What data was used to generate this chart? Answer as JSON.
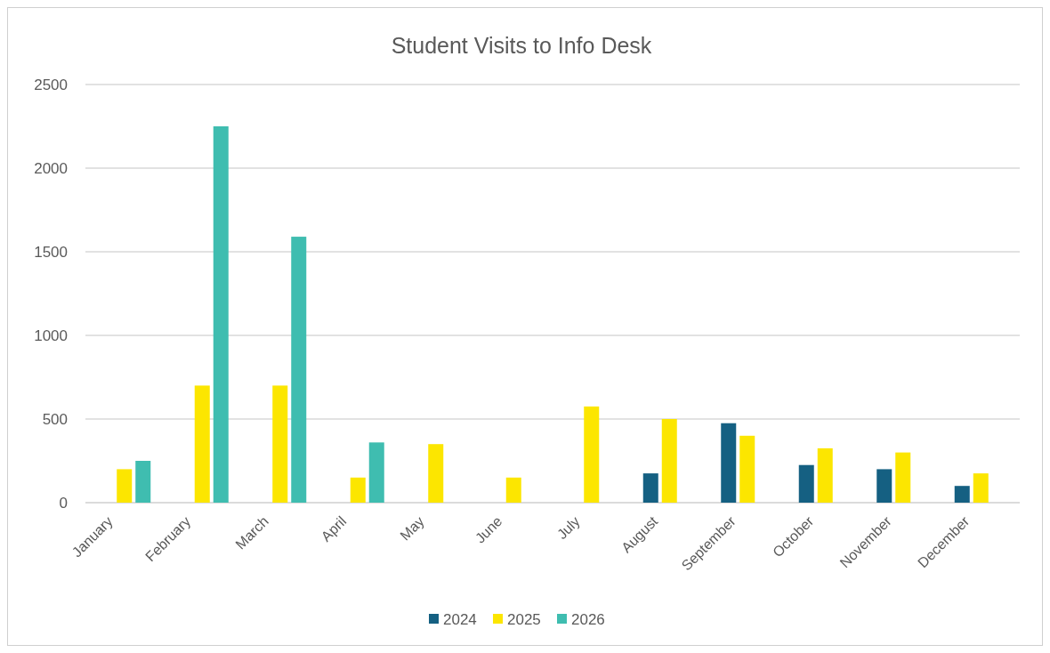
{
  "chart_data": {
    "type": "bar",
    "title": "Student Visits to Info Desk",
    "categories": [
      "January",
      "February",
      "March",
      "April",
      "May",
      "June",
      "July",
      "August",
      "September",
      "October",
      "November",
      "December"
    ],
    "series": [
      {
        "name": "2024",
        "color": "#156082",
        "values": [
          null,
          null,
          null,
          null,
          null,
          null,
          null,
          175,
          475,
          225,
          200,
          100
        ]
      },
      {
        "name": "2025",
        "color": "#fce600",
        "values": [
          200,
          700,
          700,
          150,
          350,
          150,
          575,
          500,
          400,
          325,
          300,
          175
        ]
      },
      {
        "name": "2026",
        "color": "#3fbdb0",
        "values": [
          250,
          2250,
          1590,
          360,
          null,
          null,
          null,
          null,
          null,
          null,
          null,
          null
        ]
      }
    ],
    "ylim": [
      0,
      2500
    ],
    "yticks": [
      0,
      500,
      1000,
      1500,
      2000,
      2500
    ],
    "grid": "y",
    "legend": "bottom"
  }
}
